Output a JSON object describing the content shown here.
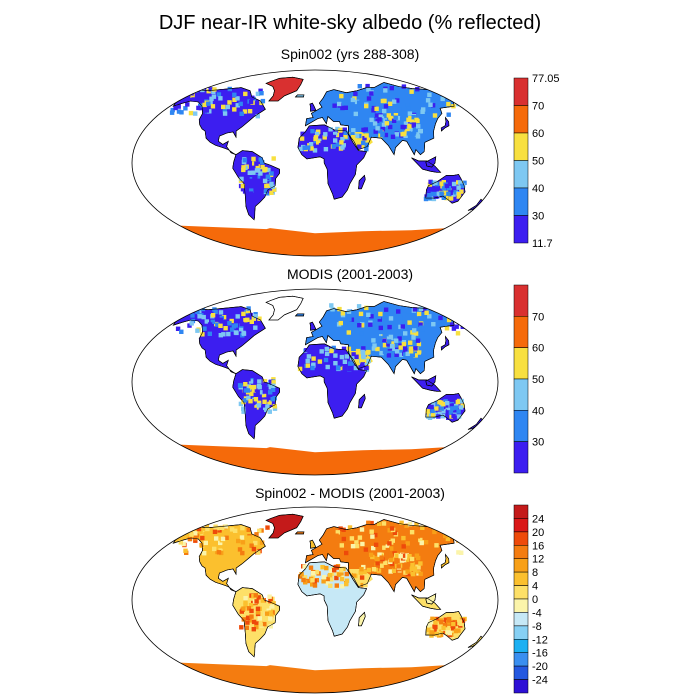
{
  "title": "DJF near-IR white-sky albedo (% reflected)",
  "colors": {
    "abs": [
      "#3c1ef0",
      "#2f86f2",
      "#7ec8f2",
      "#f8e040",
      "#f56a0a",
      "#d93030"
    ],
    "diff": [
      "#2d10d6",
      "#2458e0",
      "#3a8ff0",
      "#1cb0f2",
      "#86d0f4",
      "#c6e8f6",
      "#fbf4aa",
      "#fde068",
      "#fbc02e",
      "#f8a018",
      "#f47c10",
      "#ee4a0a",
      "#da1818",
      "#c41a1a"
    ],
    "ocean": "#ffffff",
    "outline": "#000000"
  },
  "panels": [
    {
      "title": "Spin002 (yrs 288-308)",
      "kind": "model",
      "colorbar": {
        "labels": [
          "77.05",
          "70",
          "60",
          "50",
          "40",
          "30",
          "11.7"
        ],
        "top_label": "77.05",
        "bottom_label": "11.7"
      }
    },
    {
      "title": "MODIS (2001-2003)",
      "kind": "obs",
      "colorbar": {
        "labels": [
          "70",
          "60",
          "50",
          "40",
          "30"
        ]
      }
    },
    {
      "title": "Spin002 - MODIS (2001-2003)",
      "kind": "diff",
      "colorbar": {
        "labels": [
          "24",
          "20",
          "16",
          "12",
          "8",
          "4",
          "0",
          "-4",
          "-8",
          "-12",
          "-16",
          "-20",
          "-24"
        ]
      }
    }
  ]
}
